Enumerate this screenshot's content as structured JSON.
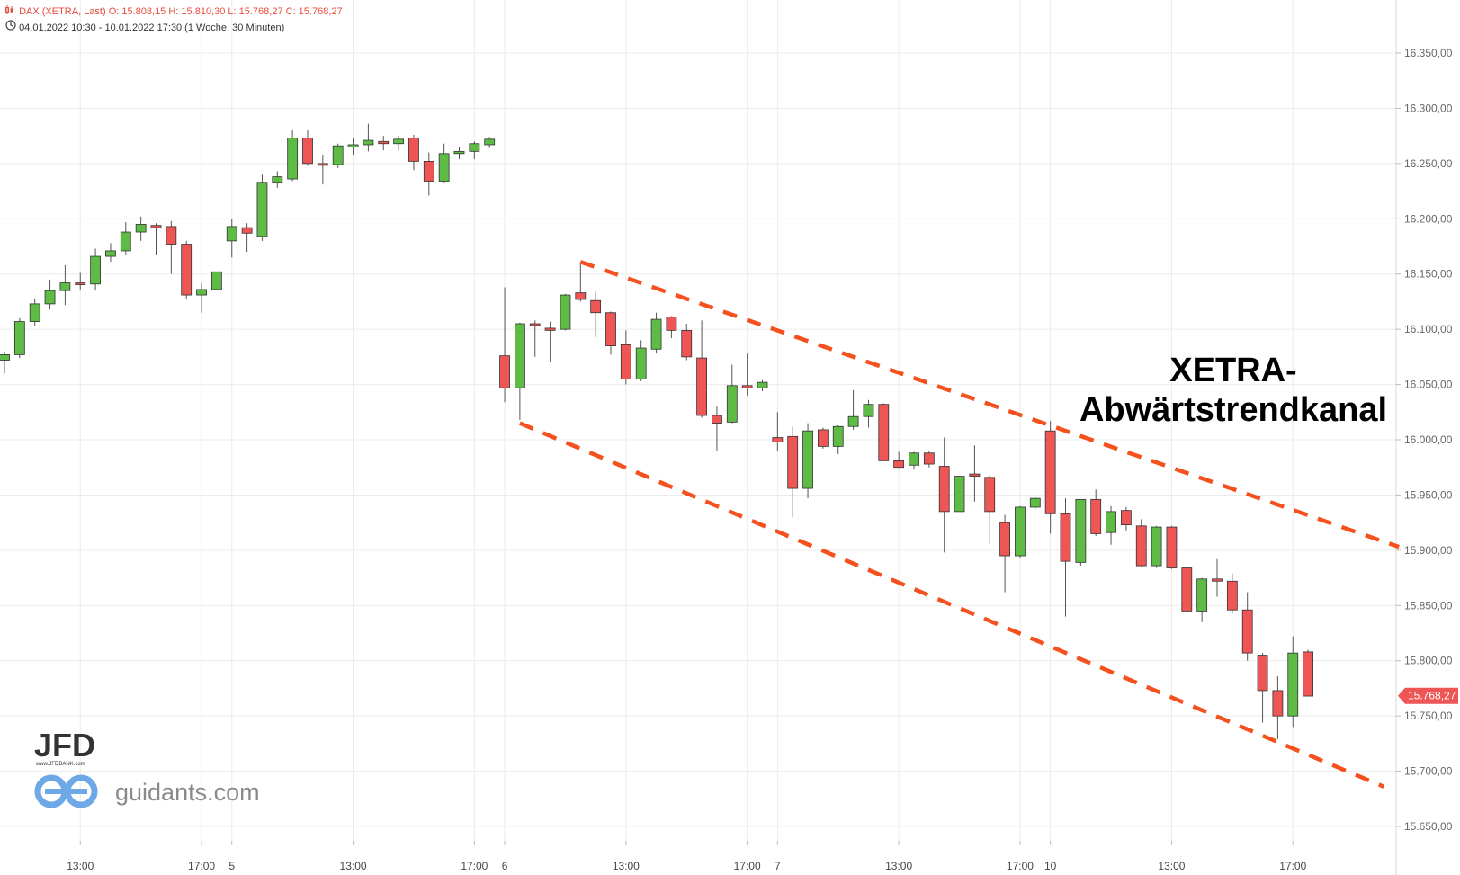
{
  "header": {
    "line1": "DAX (XETRA, Last)  O: 15.808,15  H: 15.810,30  L: 15.768,27  C: 15.768,27",
    "line2": "04.01.2022 10:30 - 10.01.2022 17:30   (1 Woche, 30 Minuten)",
    "line1_icon": "candlestick-chart-icon",
    "line2_icon": "clock-icon"
  },
  "annotation": {
    "line1": "XETRA-",
    "line2": "Abwärtstrendkanal"
  },
  "watermark": {
    "brand": "JFD",
    "brand_url": "www.JFDBANK.com",
    "site": "guidants.com",
    "site_icon": "guidants-logo-icon"
  },
  "colors": {
    "up": "#5dbb46",
    "down": "#ee5555",
    "trendline": "#f4511e",
    "last_price": "#ee5555",
    "grid": "#ececec"
  },
  "chart_data": {
    "type": "candlestick",
    "symbol": "DAX (XETRA, Last)",
    "interval": "30 Minuten",
    "period": "04.01.2022 10:30 - 10.01.2022 17:30",
    "ohlc_last": {
      "open": 15808.15,
      "high": 15810.3,
      "low": 15768.27,
      "close": 15768.27
    },
    "last_price_label": "15.768,27",
    "y_axis": {
      "ylim": [
        15630,
        16385
      ],
      "ticks": [
        16350,
        16300,
        16250,
        16200,
        16150,
        16100,
        16050,
        16000,
        15950,
        15900,
        15850,
        15800,
        15750,
        15700,
        15650
      ],
      "tick_labels": [
        "16.350,00",
        "16.300,00",
        "16.250,00",
        "16.200,00",
        "16.150,00",
        "16.100,00",
        "16.050,00",
        "16.000,00",
        "15.950,00",
        "15.900,00",
        "15.850,00",
        "15.800,00",
        "15.750,00",
        "15.700,00",
        "15.650,00"
      ],
      "side": "right"
    },
    "x_axis": {
      "ticks": [
        {
          "index": 5,
          "label": "13:00"
        },
        {
          "index": 13,
          "label": "17:00"
        },
        {
          "index": 15,
          "label": "5"
        },
        {
          "index": 23,
          "label": "13:00"
        },
        {
          "index": 31,
          "label": "17:00"
        },
        {
          "index": 33,
          "label": "6"
        },
        {
          "index": 41,
          "label": "13:00"
        },
        {
          "index": 49,
          "label": "17:00"
        },
        {
          "index": 51,
          "label": "7"
        },
        {
          "index": 59,
          "label": "13:00"
        },
        {
          "index": 67,
          "label": "17:00"
        },
        {
          "index": 69,
          "label": "10"
        },
        {
          "index": 77,
          "label": "13:00"
        },
        {
          "index": 85,
          "label": "17:00"
        }
      ]
    },
    "candles": [
      [
        16072,
        16080,
        16060,
        16077
      ],
      [
        16077,
        16110,
        16074,
        16107
      ],
      [
        16107,
        16128,
        16103,
        16123
      ],
      [
        16123,
        16145,
        16118,
        16135
      ],
      [
        16135,
        16158,
        16122,
        16142
      ],
      [
        16142,
        16151,
        16136,
        16141
      ],
      [
        16141,
        16173,
        16135,
        16166
      ],
      [
        16166,
        16178,
        16161,
        16171
      ],
      [
        16171,
        16197,
        16167,
        16188
      ],
      [
        16188,
        16202,
        16180,
        16195
      ],
      [
        16194,
        16196,
        16167,
        16192
      ],
      [
        16193,
        16198,
        16150,
        16177
      ],
      [
        16177,
        16180,
        16127,
        16131
      ],
      [
        16131,
        16142,
        16115,
        16136
      ],
      [
        16136,
        16152,
        16136,
        16152
      ],
      [
        16180,
        16200,
        16165,
        16193
      ],
      [
        16192,
        16196,
        16170,
        16187
      ],
      [
        16184,
        16240,
        16180,
        16233
      ],
      [
        16233,
        16243,
        16228,
        16238
      ],
      [
        16236,
        16280,
        16234,
        16273
      ],
      [
        16273,
        16280,
        16248,
        16250
      ],
      [
        16250,
        16258,
        16231,
        16249
      ],
      [
        16249,
        16268,
        16246,
        16266
      ],
      [
        16265,
        16273,
        16258,
        16267
      ],
      [
        16267,
        16286,
        16261,
        16271
      ],
      [
        16270,
        16275,
        16262,
        16268
      ],
      [
        16268,
        16275,
        16262,
        16272
      ],
      [
        16273,
        16276,
        16244,
        16252
      ],
      [
        16252,
        16260,
        16221,
        16234
      ],
      [
        16234,
        16268,
        16233,
        16259
      ],
      [
        16259,
        16265,
        16254,
        16261
      ],
      [
        16261,
        16270,
        16254,
        16268
      ],
      [
        16267,
        16274,
        16264,
        16272
      ],
      [
        16076,
        16138,
        16034,
        16047
      ],
      [
        16047,
        16106,
        16018,
        16105
      ],
      [
        16105,
        16108,
        16075,
        16104
      ],
      [
        16101,
        16107,
        16070,
        16099
      ],
      [
        16100,
        16132,
        16099,
        16131
      ],
      [
        16133,
        16160,
        16125,
        16127
      ],
      [
        16126,
        16134,
        16093,
        16115
      ],
      [
        16115,
        16116,
        16077,
        16085
      ],
      [
        16086,
        16099,
        16050,
        16055
      ],
      [
        16055,
        16090,
        16053,
        16083
      ],
      [
        16082,
        16115,
        16078,
        16109
      ],
      [
        16111,
        16112,
        16092,
        16099
      ],
      [
        16099,
        16105,
        16072,
        16075
      ],
      [
        16074,
        16108,
        16020,
        16022
      ],
      [
        16022,
        16030,
        15990,
        16015
      ],
      [
        16016,
        16068,
        16015,
        16049
      ],
      [
        16049,
        16078,
        16040,
        16047
      ],
      [
        16047,
        16054,
        16044,
        16052
      ],
      [
        16002,
        16025,
        15990,
        15998
      ],
      [
        16003,
        16012,
        15930,
        15956
      ],
      [
        15956,
        16015,
        15947,
        16008
      ],
      [
        16009,
        16011,
        15992,
        15994
      ],
      [
        15994,
        16013,
        15987,
        16012
      ],
      [
        16012,
        16045,
        16009,
        16021
      ],
      [
        16021,
        16036,
        16011,
        16032
      ],
      [
        16032,
        16033,
        15981,
        15981
      ],
      [
        15981,
        15989,
        15975,
        15975
      ],
      [
        15977,
        15989,
        15973,
        15988
      ],
      [
        15988,
        15990,
        15975,
        15978
      ],
      [
        15976,
        16002,
        15898,
        15935
      ],
      [
        15935,
        15967,
        15935,
        15967
      ],
      [
        15969,
        15995,
        15944,
        15967
      ],
      [
        15966,
        15968,
        15906,
        15935
      ],
      [
        15925,
        15932,
        15862,
        15895
      ],
      [
        15895,
        15940,
        15893,
        15939
      ],
      [
        15939,
        15948,
        15937,
        15947
      ],
      [
        16008,
        16017,
        15915,
        15933
      ],
      [
        15933,
        15947,
        15840,
        15890
      ],
      [
        15889,
        15946,
        15886,
        15946
      ],
      [
        15946,
        15955,
        15913,
        15915
      ],
      [
        15916,
        15940,
        15905,
        15935
      ],
      [
        15936,
        15939,
        15918,
        15923
      ],
      [
        15922,
        15928,
        15885,
        15886
      ],
      [
        15886,
        15922,
        15884,
        15921
      ],
      [
        15921,
        15922,
        15883,
        15884
      ],
      [
        15884,
        15886,
        15845,
        15845
      ],
      [
        15845,
        15875,
        15835,
        15874
      ],
      [
        15874,
        15892,
        15858,
        15872
      ],
      [
        15872,
        15879,
        15843,
        15846
      ],
      [
        15846,
        15862,
        15800,
        15807
      ],
      [
        15805,
        15807,
        15744,
        15773
      ],
      [
        15773,
        15786,
        15729,
        15750
      ],
      [
        15750,
        15822,
        15740,
        15807
      ],
      [
        15808,
        15810,
        15768,
        15768
      ]
    ],
    "trendlines": [
      {
        "name": "upper channel",
        "points": [
          [
            38,
            16161
          ],
          [
            92,
            15903
          ]
        ]
      },
      {
        "name": "lower channel",
        "points": [
          [
            34,
            16015
          ],
          [
            91,
            15686
          ]
        ]
      }
    ],
    "grid": true
  }
}
